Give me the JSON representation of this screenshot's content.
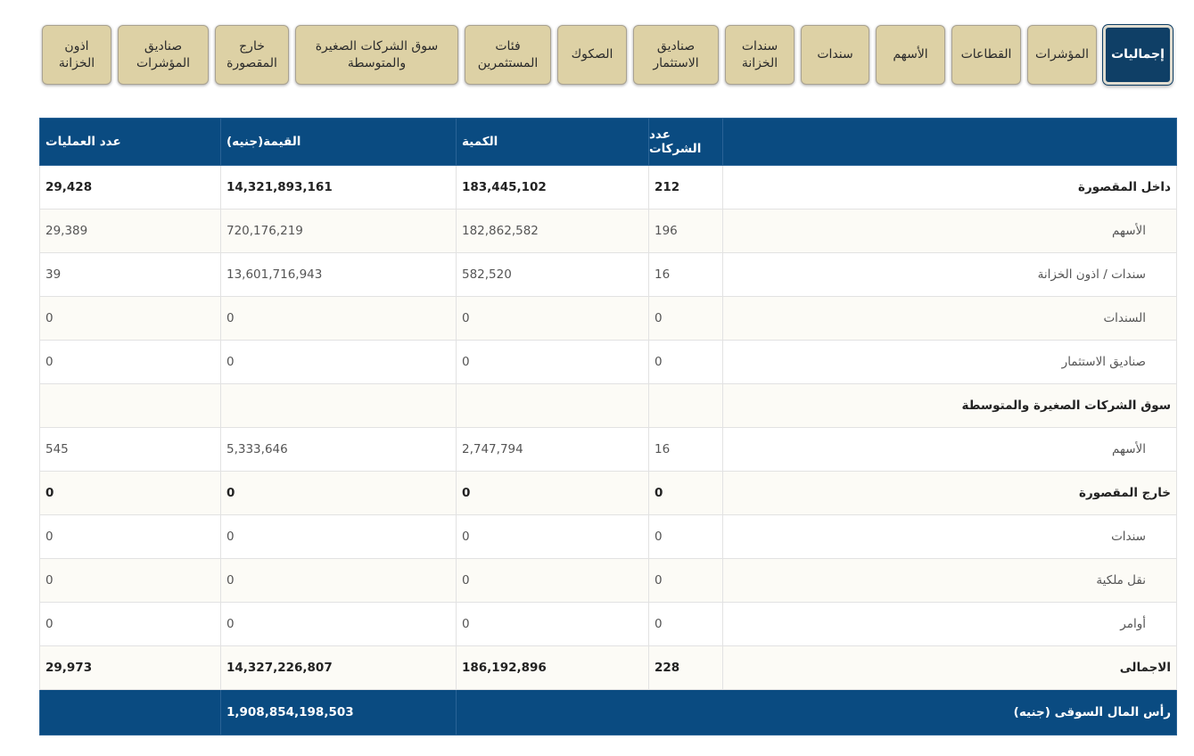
{
  "tabs": [
    {
      "label": "إجماليات",
      "active": true
    },
    {
      "label": "المؤشرات",
      "active": false
    },
    {
      "label": "القطاعات",
      "active": false
    },
    {
      "label": "الأسهم",
      "active": false
    },
    {
      "label": "سندات",
      "active": false
    },
    {
      "label": "سندات الخزانة",
      "active": false
    },
    {
      "label": "صناديق الاستثمار",
      "active": false
    },
    {
      "label": "الصكوك",
      "active": false
    },
    {
      "label": "فئات المستثمرين",
      "active": false
    },
    {
      "label": "سوق الشركات الصغيرة والمتوسطة",
      "active": false
    },
    {
      "label": "خارج المقصورة",
      "active": false
    },
    {
      "label": "صناديق المؤشرات",
      "active": false
    },
    {
      "label": "اذون الخزانة",
      "active": false
    }
  ],
  "table": {
    "headers": {
      "label": "",
      "companies": "عدد الشركات",
      "quantity": "الكمية",
      "value": "القيمة(جنيه)",
      "trades": "عدد العمليات"
    },
    "rows": [
      {
        "label": "داخل المقصورة",
        "companies": "212",
        "quantity": "183,445,102",
        "value": "14,321,893,161",
        "trades": "29,428"
      },
      {
        "label": "الأسهم",
        "companies": "196",
        "quantity": "182,862,582",
        "value": "720,176,219",
        "trades": "29,389"
      },
      {
        "label": "سندات / اذون الخزانة",
        "companies": "16",
        "quantity": "582,520",
        "value": "13,601,716,943",
        "trades": "39"
      },
      {
        "label": "السندات",
        "companies": "0",
        "quantity": "0",
        "value": "0",
        "trades": "0"
      },
      {
        "label": "صناديق الاستثمار",
        "companies": "0",
        "quantity": "0",
        "value": "0",
        "trades": "0"
      },
      {
        "label": "سوق الشركات الصغيرة والمتوسطة",
        "companies": "",
        "quantity": "",
        "value": "",
        "trades": ""
      },
      {
        "label": "الأسهم",
        "companies": "16",
        "quantity": "2,747,794",
        "value": "5,333,646",
        "trades": "545"
      },
      {
        "label": "خارج المقصورة",
        "companies": "0",
        "quantity": "0",
        "value": "0",
        "trades": "0"
      },
      {
        "label": "سندات",
        "companies": "0",
        "quantity": "0",
        "value": "0",
        "trades": "0"
      },
      {
        "label": "نقل ملكية",
        "companies": "0",
        "quantity": "0",
        "value": "0",
        "trades": "0"
      },
      {
        "label": "أوامر",
        "companies": "0",
        "quantity": "0",
        "value": "0",
        "trades": "0"
      },
      {
        "label": "الاجمالى",
        "companies": "228",
        "quantity": "186,192,896",
        "value": "14,327,226,807",
        "trades": "29,973"
      }
    ],
    "footer": {
      "label": "رأس المال السوقى (جنيه)",
      "value": "1,908,854,198,503"
    }
  }
}
